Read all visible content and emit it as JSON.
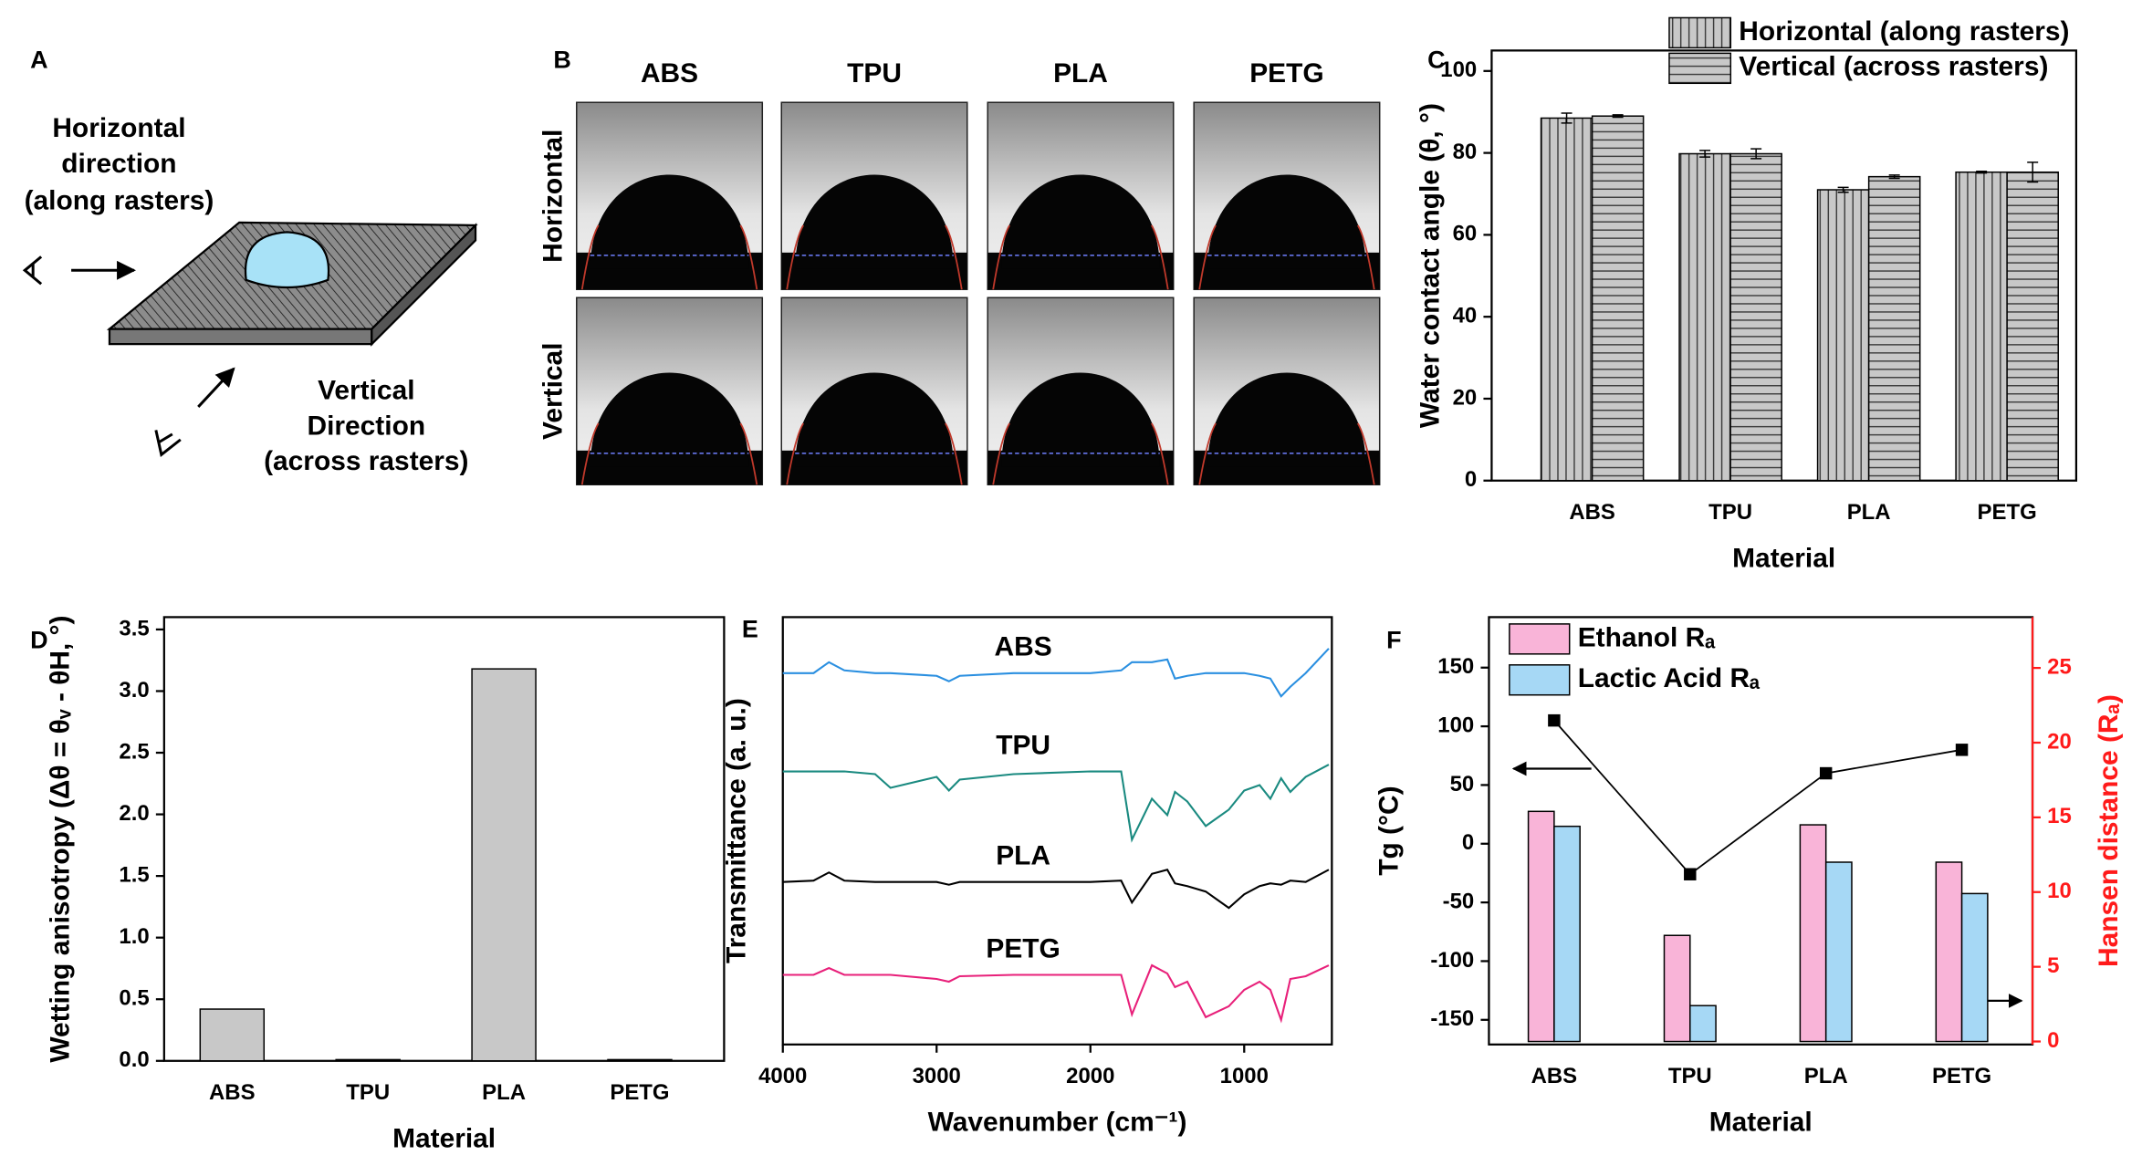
{
  "panel_labels": [
    "A",
    "B",
    "C",
    "D",
    "E",
    "F"
  ],
  "schematic": {
    "horizontal_label": [
      "Horizontal",
      "direction",
      "(along rasters)"
    ],
    "vertical_label": [
      "Vertical",
      "Direction",
      "(across rasters)"
    ]
  },
  "droplet_images": {
    "columns": [
      "ABS",
      "TPU",
      "PLA",
      "PETG"
    ],
    "rows": [
      "Horizontal",
      "Vertical"
    ]
  },
  "chart_data": [
    {
      "type": "bar",
      "categories": [
        "ABS",
        "TPU",
        "PLA",
        "PETG"
      ],
      "series": [
        {
          "name": "Horizontal (along rasters)",
          "color": "#c8c8c8",
          "hatch": "vertical",
          "values": [
            88.5,
            79.8,
            71.0,
            75.3
          ],
          "errors": [
            1.2,
            0.8,
            0.6,
            0.2
          ]
        },
        {
          "name": "Vertical (across rasters)",
          "color": "#c8c8c8",
          "hatch": "horizontal",
          "values": [
            89.0,
            79.8,
            74.2,
            75.3
          ],
          "errors": [
            0.3,
            1.2,
            0.4,
            2.4
          ]
        }
      ],
      "xlabel": "Material",
      "ylabel": "Water contact angle (θ, °)",
      "ylim": [
        0,
        105
      ],
      "yticks": [
        0,
        20,
        40,
        60,
        80,
        100
      ],
      "legend": "top-right"
    },
    {
      "type": "bar",
      "categories": [
        "ABS",
        "TPU",
        "PLA",
        "PETG"
      ],
      "values": [
        0.42,
        0.01,
        3.18,
        0.01
      ],
      "color": "#c8c8c8",
      "xlabel": "Material",
      "ylabel": "Wetting anisotropy (Δθ = θᵥ - θH, °)",
      "ylim": [
        0,
        3.6
      ],
      "yticks": [
        {
          "value": 0,
          "label": "0.0"
        },
        {
          "value": 0.5,
          "label": "0.5"
        },
        {
          "value": 1,
          "label": "1.0"
        },
        {
          "value": 1.5,
          "label": "1.5"
        },
        {
          "value": 2,
          "label": "2.0"
        },
        {
          "value": 2.5,
          "label": "2.5"
        },
        {
          "value": 3,
          "label": "3.0"
        },
        {
          "value": 3.5,
          "label": "3.5"
        }
      ]
    },
    {
      "type": "line",
      "x": [
        4000,
        3800,
        3700,
        3600,
        3400,
        3300,
        3000,
        2920,
        2850,
        2500,
        2000,
        1800,
        1730,
        1600,
        1500,
        1450,
        1370,
        1250,
        1100,
        1000,
        900,
        830,
        760,
        700,
        600,
        450
      ],
      "series": [
        {
          "name": "ABS",
          "color": "#2a8fe0",
          "values": [
            272,
            272,
            280,
            274,
            272,
            272,
            270,
            266,
            270,
            272,
            272,
            274,
            280,
            280,
            282,
            268,
            270,
            272,
            272,
            272,
            270,
            268,
            255,
            262,
            272,
            290
          ]
        },
        {
          "name": "TPU",
          "color": "#1a8a80",
          "values": [
            200,
            200,
            200,
            200,
            198,
            188,
            196,
            186,
            194,
            198,
            200,
            200,
            150,
            180,
            168,
            185,
            178,
            160,
            172,
            186,
            190,
            180,
            195,
            185,
            196,
            205
          ]
        },
        {
          "name": "PLA",
          "color": "#000000",
          "values": [
            119,
            120,
            126,
            120,
            119,
            119,
            119,
            117,
            119,
            119,
            119,
            120,
            104,
            125,
            128,
            118,
            116,
            112,
            100,
            110,
            116,
            118,
            117,
            120,
            119,
            128
          ]
        },
        {
          "name": "PETG",
          "color": "#e8207a",
          "values": [
            51,
            51,
            56,
            51,
            51,
            51,
            48,
            46,
            50,
            51,
            51,
            51,
            22,
            58,
            52,
            42,
            46,
            20,
            28,
            40,
            46,
            40,
            18,
            48,
            50,
            58
          ]
        }
      ],
      "xlabel": "Wavenumber (cm⁻¹)",
      "ylabel": "Transmittance (a. u.)",
      "xlim": [
        4000,
        430
      ],
      "xticks": [
        4000,
        3000,
        2000,
        1000
      ],
      "ylim": [
        0,
        313
      ]
    },
    {
      "type": "combo",
      "categories": [
        "ABS",
        "TPU",
        "PLA",
        "PETG"
      ],
      "series": [
        {
          "name": "Ethanol Rₐ",
          "kind": "bar",
          "axis": "y2",
          "color": "#f9b4d8",
          "values": [
            15.4,
            7.1,
            14.5,
            12.0
          ]
        },
        {
          "name": "Lactic Acid Rₐ",
          "kind": "bar",
          "axis": "y2",
          "color": "#a6d8f5",
          "values": [
            14.4,
            2.4,
            12.0,
            9.9
          ]
        },
        {
          "kind": "line",
          "axis": "y",
          "color": "#000000",
          "marker": "square",
          "values": [
            105,
            -26,
            60,
            80
          ]
        }
      ],
      "xlabel": "Material",
      "ylabel": "Tg (°C)",
      "y2label": "Hansen distance (Rₐ)",
      "y2color": "#ff1a1a",
      "ylim": [
        -171,
        193
      ],
      "yticks": [
        -150,
        -100,
        -50,
        0,
        50,
        100,
        150
      ],
      "y2lim": [
        -0.2,
        28.4
      ],
      "y2ticks": [
        0,
        5,
        10,
        15,
        20,
        25
      ],
      "legend": "top-left"
    }
  ]
}
